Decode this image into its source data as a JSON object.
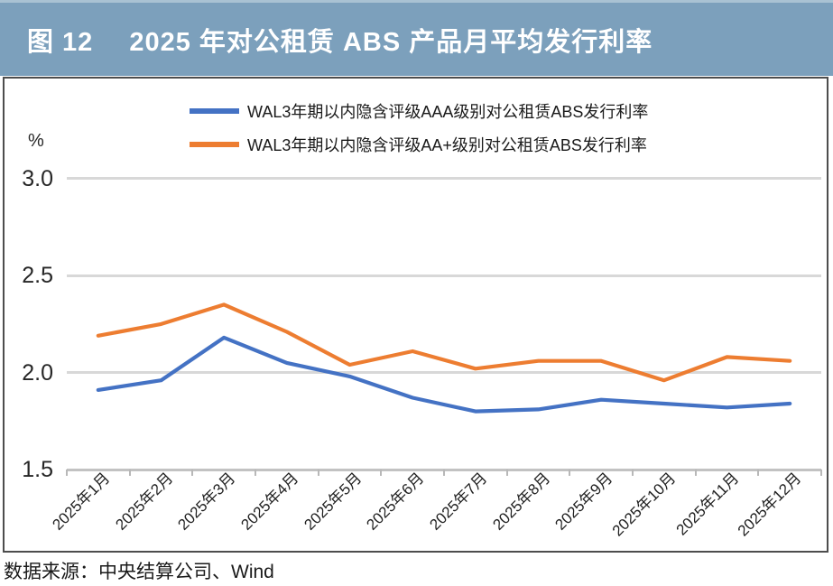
{
  "header": {
    "figure_label": "图 12",
    "title": "2025 年对公租赁 ABS 产品月平均发行利率"
  },
  "source_note": "数据来源：中央结算公司、Wind",
  "colors": {
    "title_bar_bg": "#7CA0BC",
    "title_text": "#FFFFFF",
    "series_aaa": "#4472C4",
    "series_aa_plus": "#ED7D31",
    "gridline": "#D8D8D8",
    "axis_line": "#C2C2C2"
  },
  "chart_data": {
    "type": "line",
    "unit_label": "%",
    "categories": [
      "2025年1月",
      "2025年2月",
      "2025年3月",
      "2025年4月",
      "2025年5月",
      "2025年6月",
      "2025年7月",
      "2025年8月",
      "2025年9月",
      "2025年10月",
      "2025年11月",
      "2025年12月"
    ],
    "series": [
      {
        "name": "WAL3年期以内隐含评级AAA级别对公租赁ABS发行利率",
        "color": "#4472C4",
        "values": [
          1.91,
          1.96,
          2.18,
          2.05,
          1.98,
          1.87,
          1.8,
          1.81,
          1.86,
          1.84,
          1.82,
          1.84
        ]
      },
      {
        "name": "WAL3年期以内隐含评级AA+级别对公租赁ABS发行利率",
        "color": "#ED7D31",
        "values": [
          2.19,
          2.25,
          2.35,
          2.21,
          2.04,
          2.11,
          2.02,
          2.06,
          2.06,
          1.96,
          2.08,
          2.06
        ]
      }
    ],
    "ylim": [
      1.5,
      3.0
    ],
    "yticks": [
      3.0,
      2.5,
      2.0,
      1.5
    ],
    "grid": true,
    "legend_position": "top"
  }
}
